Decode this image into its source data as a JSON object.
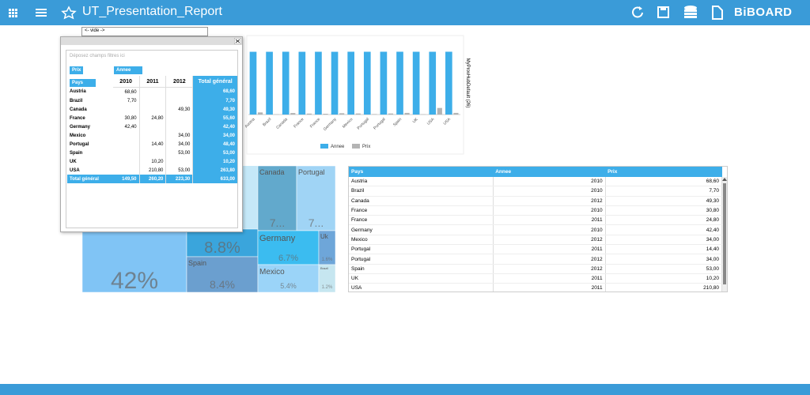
{
  "header": {
    "title": "UT_Presentation_Report",
    "logo": "BiBOARD"
  },
  "filter_box": {
    "text": "<- vide ->"
  },
  "pivot": {
    "hint": "Déposez champs filtres ici",
    "filter_chip": "Prix",
    "column_chip": "Annee",
    "row_chip": "Pays",
    "columns": [
      "2010",
      "2011",
      "2012",
      "Total général"
    ],
    "rows": [
      {
        "label": "Austria",
        "cells": [
          "68,60",
          null,
          null,
          "68,60"
        ]
      },
      {
        "label": "Brazil",
        "cells": [
          "7,70",
          null,
          null,
          "7,70"
        ]
      },
      {
        "label": "Canada",
        "cells": [
          null,
          null,
          "49,30",
          "49,30"
        ]
      },
      {
        "label": "France",
        "cells": [
          "30,80",
          "24,80",
          null,
          "55,60"
        ]
      },
      {
        "label": "Germany",
        "cells": [
          "42,40",
          null,
          null,
          "42,40"
        ]
      },
      {
        "label": "Mexico",
        "cells": [
          null,
          null,
          "34,00",
          "34,00"
        ]
      },
      {
        "label": "Portugal",
        "cells": [
          null,
          "14,40",
          "34,00",
          "48,40"
        ]
      },
      {
        "label": "Spain",
        "cells": [
          null,
          null,
          "53,00",
          "53,00"
        ]
      },
      {
        "label": "UK",
        "cells": [
          null,
          "10,20",
          null,
          "10,20"
        ]
      },
      {
        "label": "USA",
        "cells": [
          null,
          "210,80",
          "53,00",
          "263,80"
        ]
      }
    ],
    "total": {
      "label": "Total général",
      "cells": [
        "149,50",
        "260,20",
        "223,30",
        "633,00"
      ]
    }
  },
  "chart_data": {
    "type": "bar",
    "y_axis_label": "MyProvHubDefault (26)",
    "categories": [
      "Austria",
      "Brazil",
      "Canada",
      "France",
      "France",
      "Germany",
      "Mexico",
      "Portugal",
      "Portugal",
      "Spain",
      "UK",
      "USA",
      "USA"
    ],
    "series": [
      {
        "name": "Annee",
        "color": "#3daee9",
        "values": [
          2010,
          2010,
          2012,
          2010,
          2011,
          2010,
          2012,
          2011,
          2012,
          2012,
          2011,
          2011,
          2012
        ]
      },
      {
        "name": "Prix",
        "color": "#b4b4b4",
        "values": [
          68.6,
          7.7,
          49.3,
          30.8,
          24.8,
          42.4,
          34,
          14.4,
          34,
          53,
          10.2,
          210.8,
          53
        ]
      }
    ],
    "ylim": [
      0,
      2100
    ]
  },
  "treemap": {
    "tiles": [
      {
        "value_label": "42%"
      },
      {
        "value_label": "8.8%"
      },
      {
        "name": "Spain",
        "value_label": "8.4%"
      },
      {
        "name": "Canada",
        "value_label": "7..."
      },
      {
        "name": "Portugal",
        "value_label": "7..."
      },
      {
        "name": "Germany",
        "value_label": "6.7%"
      },
      {
        "name": "Uk",
        "value_label": "1.6%"
      },
      {
        "name": "Mexico",
        "value_label": "5.4%"
      },
      {
        "name": "Brazil",
        "value_label": "1.2%"
      }
    ]
  },
  "table": {
    "columns": [
      "Pays",
      "Annee",
      "Prix"
    ],
    "rows": [
      [
        "Austria",
        "2010",
        "68,60"
      ],
      [
        "Brazil",
        "2010",
        "7,70"
      ],
      [
        "Canada",
        "2012",
        "49,30"
      ],
      [
        "France",
        "2010",
        "30,80"
      ],
      [
        "France",
        "2011",
        "24,80"
      ],
      [
        "Germany",
        "2010",
        "42,40"
      ],
      [
        "Mexico",
        "2012",
        "34,00"
      ],
      [
        "Portugal",
        "2011",
        "14,40"
      ],
      [
        "Portugal",
        "2012",
        "34,00"
      ],
      [
        "Spain",
        "2012",
        "53,00"
      ],
      [
        "UK",
        "2011",
        "10,20"
      ],
      [
        "USA",
        "2011",
        "210,80"
      ]
    ]
  }
}
